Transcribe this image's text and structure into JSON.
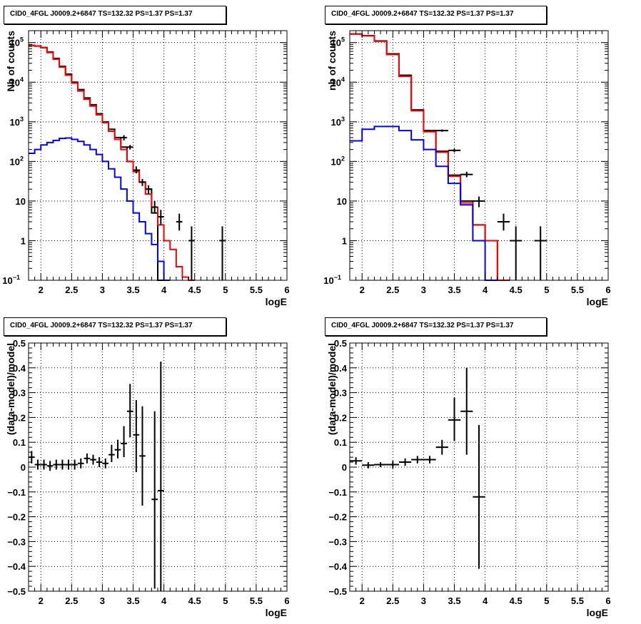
{
  "chart_data": [
    {
      "type": "histogram",
      "panel": "top-left",
      "title": "CID0_4FGL J0009.2+6847 TS=132.32 PS=1.37 PS=1.37",
      "xlabel": "logE",
      "ylabel": "Nb of counts",
      "xlim": [
        1.8,
        6.0
      ],
      "ylim": [
        0.1,
        200000
      ],
      "yscale": "log",
      "grid": true,
      "xticks": [
        "2",
        "2.5",
        "3",
        "3.5",
        "4",
        "4.5",
        "5",
        "5.5",
        "6"
      ],
      "yticks": [
        {
          "v": 0.1,
          "label": "10",
          "exp": "−1"
        },
        {
          "v": 1,
          "label": "1",
          "exp": ""
        },
        {
          "v": 10,
          "label": "10",
          "exp": ""
        },
        {
          "v": 100,
          "label": "10",
          "exp": "2"
        },
        {
          "v": 1000,
          "label": "10",
          "exp": "3"
        },
        {
          "v": 10000,
          "label": "10",
          "exp": "4"
        },
        {
          "v": 100000,
          "label": "10",
          "exp": "5"
        }
      ],
      "bin_width": 0.1,
      "series": [
        {
          "color": "#000000",
          "kind": "hist",
          "values": [
            85000,
            82000,
            75000,
            58000,
            40000,
            25000,
            16000,
            10000,
            6500,
            4000,
            2700,
            1600,
            1000,
            650,
            400,
            230,
            100,
            60,
            30,
            20,
            5,
            0.1
          ]
        },
        {
          "color": "#ff0000",
          "kind": "hist",
          "values": [
            84000,
            81000,
            74000,
            56000,
            38000,
            24000,
            15000,
            9500,
            6000,
            3700,
            2500,
            1500,
            950,
            580,
            360,
            200,
            100,
            55,
            30,
            15,
            7,
            2.5,
            1,
            0.6,
            0.22,
            0.12,
            0.1
          ]
        },
        {
          "color": "#0000ff",
          "kind": "hist",
          "values": [
            160,
            200,
            260,
            300,
            340,
            380,
            390,
            360,
            320,
            260,
            200,
            150,
            100,
            65,
            40,
            20,
            10,
            5,
            3,
            1.5,
            0.8,
            0.3,
            0.1
          ]
        },
        {
          "color": "#000000",
          "kind": "points",
          "x": [
            3.35,
            3.45,
            3.55,
            3.65,
            3.75,
            3.85,
            3.95,
            4.25,
            4.45,
            4.95
          ],
          "y": [
            400,
            230,
            60,
            30,
            20,
            7,
            4,
            3,
            1,
            1
          ],
          "ylo": [
            340,
            200,
            50,
            24,
            15,
            5,
            2.5,
            1.8,
            0.1,
            0.1
          ],
          "yhi": [
            460,
            260,
            75,
            36,
            25,
            10,
            6,
            4.8,
            2.3,
            2.3
          ]
        }
      ]
    },
    {
      "type": "histogram",
      "panel": "top-right",
      "title": "CID0_4FGL J0009.2+6847 TS=132.32 PS=1.37 PS=1.37",
      "xlabel": "logE",
      "ylabel": "nb of counts",
      "xlim": [
        1.8,
        6.0
      ],
      "ylim": [
        0.1,
        200000
      ],
      "yscale": "log",
      "grid": true,
      "xticks": [
        "2",
        "2.5",
        "3",
        "3.5",
        "4",
        "4.5",
        "5",
        "5.5",
        "6"
      ],
      "yticks": [
        {
          "v": 0.1,
          "label": "10",
          "exp": "−1"
        },
        {
          "v": 1,
          "label": "1",
          "exp": ""
        },
        {
          "v": 10,
          "label": "10",
          "exp": ""
        },
        {
          "v": 100,
          "label": "10",
          "exp": "2"
        },
        {
          "v": 1000,
          "label": "10",
          "exp": "3"
        },
        {
          "v": 10000,
          "label": "10",
          "exp": "4"
        },
        {
          "v": 100000,
          "label": "10",
          "exp": "5"
        }
      ],
      "bin_width": 0.2,
      "series": [
        {
          "color": "#000000",
          "kind": "hist",
          "values": [
            165000,
            150000,
            110000,
            52000,
            15000,
            2000,
            600,
            180,
            45,
            10,
            2.5,
            1,
            0.1
          ]
        },
        {
          "color": "#ff0000",
          "kind": "hist",
          "values": [
            163000,
            148000,
            108000,
            50000,
            14000,
            1900,
            560,
            170,
            42,
            9,
            2.5,
            1,
            0.1
          ]
        },
        {
          "color": "#0000ff",
          "kind": "hist",
          "values": [
            330,
            650,
            760,
            760,
            600,
            350,
            200,
            75,
            28,
            8,
            1,
            0.1
          ]
        },
        {
          "color": "#000000",
          "kind": "points",
          "x": [
            3.3,
            3.5,
            3.7,
            3.9,
            4.3,
            4.5,
            4.9
          ],
          "y": [
            600,
            190,
            47,
            10,
            3,
            1,
            1
          ],
          "ylo": [
            560,
            170,
            40,
            7,
            1.8,
            0.1,
            0.1
          ],
          "yhi": [
            640,
            210,
            55,
            13,
            4.8,
            2.3,
            2.3
          ]
        }
      ]
    },
    {
      "type": "scatter",
      "panel": "bottom-left",
      "title": "CID0_4FGL J0009.2+6847 TS=132.32 PS=1.37 PS=1.37",
      "xlabel": "logE",
      "ylabel": "(data-model)/model",
      "xlim": [
        1.8,
        6.0
      ],
      "ylim": [
        -0.5,
        0.5
      ],
      "yscale": "linear",
      "grid": true,
      "xticks": [
        "2",
        "2.5",
        "3",
        "3.5",
        "4",
        "4.5",
        "5",
        "5.5",
        "6"
      ],
      "yticks": [
        {
          "v": -0.5,
          "label": "−0.5"
        },
        {
          "v": -0.4,
          "label": "−0.4"
        },
        {
          "v": -0.3,
          "label": "−0.3"
        },
        {
          "v": -0.2,
          "label": "−0.2"
        },
        {
          "v": -0.1,
          "label": "−0.1"
        },
        {
          "v": 0,
          "label": "0"
        },
        {
          "v": 0.1,
          "label": "0.1"
        },
        {
          "v": 0.2,
          "label": "0.2"
        },
        {
          "v": 0.3,
          "label": "0.3"
        },
        {
          "v": 0.4,
          "label": "0.4"
        },
        {
          "v": 0.5,
          "label": "0.5"
        }
      ],
      "series": [
        {
          "color": "#000000",
          "kind": "points",
          "xerr": 0.05,
          "x": [
            1.85,
            1.95,
            2.05,
            2.15,
            2.25,
            2.35,
            2.45,
            2.55,
            2.65,
            2.75,
            2.85,
            2.95,
            3.05,
            3.15,
            3.25,
            3.35,
            3.45,
            3.55,
            3.65,
            3.85,
            3.95
          ],
          "y": [
            0.04,
            0.01,
            0.01,
            0.005,
            0.01,
            0.01,
            0.01,
            0.01,
            0.015,
            0.035,
            0.03,
            0.02,
            0.015,
            0.05,
            0.07,
            0.095,
            0.225,
            0.13,
            0.045,
            -0.13,
            -0.095
          ],
          "ylo": [
            0.015,
            -0.01,
            -0.01,
            -0.015,
            -0.01,
            -0.01,
            -0.01,
            -0.01,
            -0.005,
            0.015,
            0.01,
            0.0,
            -0.005,
            0.02,
            0.035,
            0.04,
            0.12,
            -0.02,
            -0.155,
            -0.49,
            -0.5
          ],
          "yhi": [
            0.065,
            0.03,
            0.03,
            0.025,
            0.03,
            0.03,
            0.03,
            0.03,
            0.035,
            0.055,
            0.05,
            0.04,
            0.035,
            0.09,
            0.11,
            0.165,
            0.335,
            0.27,
            0.245,
            0.225,
            0.425
          ]
        }
      ]
    },
    {
      "type": "scatter",
      "panel": "bottom-right",
      "title": "CID0_4FGL J0009.2+6847 TS=132.32 PS=1.37 PS=1.37",
      "xlabel": "logE",
      "ylabel": "(data-model)/model",
      "xlim": [
        1.8,
        6.0
      ],
      "ylim": [
        -0.5,
        0.5
      ],
      "yscale": "linear",
      "grid": true,
      "xticks": [
        "2",
        "2.5",
        "3",
        "3.5",
        "4",
        "4.5",
        "5",
        "5.5",
        "6"
      ],
      "yticks": [
        {
          "v": -0.5,
          "label": "−0.5"
        },
        {
          "v": -0.4,
          "label": "−0.4"
        },
        {
          "v": -0.3,
          "label": "−0.3"
        },
        {
          "v": -0.2,
          "label": "−0.2"
        },
        {
          "v": -0.1,
          "label": "−0.1"
        },
        {
          "v": 0,
          "label": "0"
        },
        {
          "v": 0.1,
          "label": "0.1"
        },
        {
          "v": 0.2,
          "label": "0.2"
        },
        {
          "v": 0.3,
          "label": "0.3"
        },
        {
          "v": 0.4,
          "label": "0.4"
        },
        {
          "v": 0.5,
          "label": "0.5"
        }
      ],
      "series": [
        {
          "color": "#000000",
          "kind": "points",
          "xerr": 0.1,
          "x": [
            1.9,
            2.1,
            2.3,
            2.5,
            2.7,
            2.9,
            3.1,
            3.3,
            3.5,
            3.7,
            3.9
          ],
          "y": [
            0.025,
            0.008,
            0.01,
            0.01,
            0.02,
            0.03,
            0.03,
            0.08,
            0.19,
            0.225,
            -0.12
          ],
          "ylo": [
            0.01,
            -0.005,
            0.0,
            -0.005,
            0.005,
            0.015,
            0.015,
            0.05,
            0.105,
            0.05,
            -0.41
          ],
          "yhi": [
            0.04,
            0.02,
            0.02,
            0.025,
            0.035,
            0.045,
            0.045,
            0.11,
            0.28,
            0.4,
            0.17
          ]
        }
      ]
    }
  ]
}
